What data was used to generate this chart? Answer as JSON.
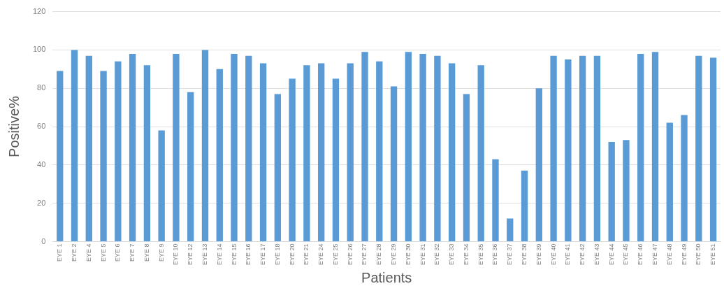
{
  "chart_data": {
    "type": "bar",
    "xlabel": "Patients",
    "ylabel": "Positive%",
    "categories": [
      "EYE 1",
      "EYE 2",
      "EYE 4",
      "EYE 5",
      "EYE 6",
      "EYE 7",
      "EYE 8",
      "EYE 9",
      "EYE 10",
      "EYE 12",
      "EYE 13",
      "EYE 14",
      "EYE 15",
      "EYE 16",
      "EYE 17",
      "EYE 18",
      "EYE 20",
      "EYE 21",
      "EYE 24",
      "EYE 25",
      "EYE 26",
      "EYE 27",
      "EYE 28",
      "EYE 29",
      "EYE 30",
      "EYE 31",
      "EYE 32",
      "EYE 33",
      "EYE 34",
      "EYE 35",
      "EYE 36",
      "EYE 37",
      "EYE 38",
      "EYE 39",
      "EYE 40",
      "EYE 41",
      "EYE 42",
      "EYE 43",
      "EYE 44",
      "EYE 45",
      "EYE 46",
      "EYE 47",
      "EYE 48",
      "EYE 49",
      "EYE 50",
      "EYE 51"
    ],
    "values": [
      89,
      100,
      97,
      89,
      94,
      98,
      92,
      58,
      98,
      78,
      100,
      90,
      98,
      97,
      93,
      77,
      85,
      92,
      93,
      85,
      93,
      99,
      94,
      81,
      99,
      98,
      97,
      93,
      77,
      92,
      43,
      12,
      37,
      80,
      97,
      95,
      97,
      97,
      52,
      53,
      98,
      99,
      62,
      66,
      97,
      96
    ],
    "color": "#5b9bd5",
    "ylim": [
      0,
      120
    ],
    "yticks": [
      0,
      20,
      40,
      60,
      80,
      100,
      120
    ],
    "grid": "y"
  }
}
